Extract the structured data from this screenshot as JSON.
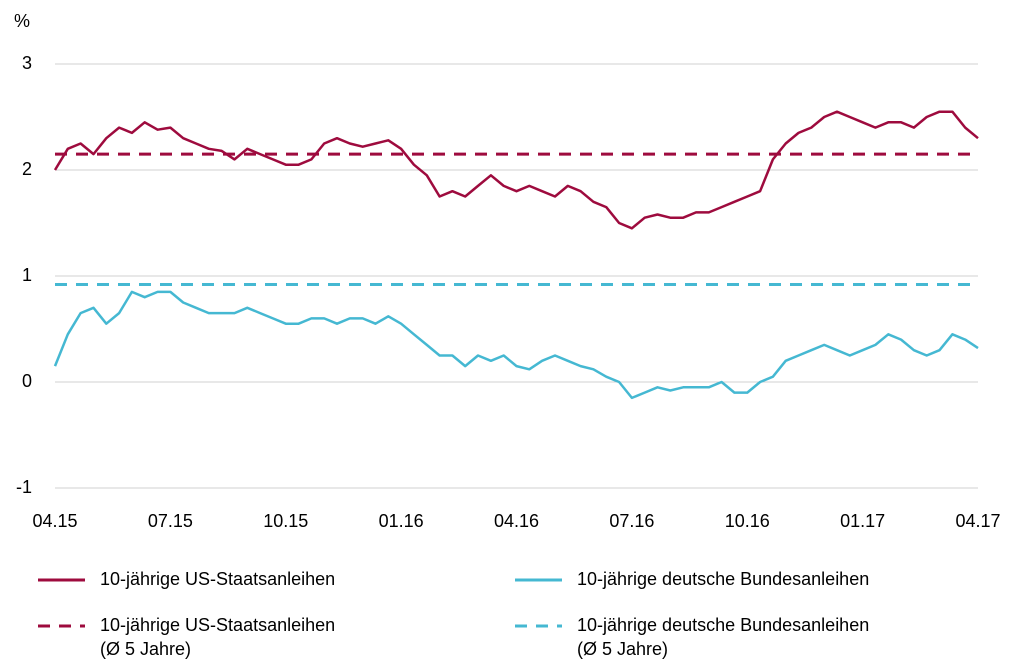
{
  "chart_data": {
    "type": "line",
    "y_label": "%",
    "categories": [
      "04.15",
      null,
      null,
      null,
      null,
      null,
      null,
      null,
      null,
      "07.15",
      null,
      null,
      null,
      null,
      null,
      null,
      null,
      null,
      "10.15",
      null,
      null,
      null,
      null,
      null,
      null,
      null,
      null,
      "01.16",
      null,
      null,
      null,
      null,
      null,
      null,
      null,
      null,
      "04.16",
      null,
      null,
      null,
      null,
      null,
      null,
      null,
      null,
      "07.16",
      null,
      null,
      null,
      null,
      null,
      null,
      null,
      null,
      "10.16",
      null,
      null,
      null,
      null,
      null,
      null,
      null,
      null,
      "01.17",
      null,
      null,
      null,
      null,
      null,
      null,
      null,
      null,
      "04.17"
    ],
    "series": [
      {
        "name": "10-jährige US-Staatsanleihen",
        "color": "#9e0b3e",
        "dash": false,
        "values": [
          2.0,
          2.2,
          2.25,
          2.15,
          2.3,
          2.4,
          2.35,
          2.45,
          2.38,
          2.4,
          2.3,
          2.25,
          2.2,
          2.18,
          2.1,
          2.2,
          2.15,
          2.1,
          2.05,
          2.05,
          2.1,
          2.25,
          2.3,
          2.25,
          2.22,
          2.25,
          2.28,
          2.2,
          2.05,
          1.95,
          1.75,
          1.8,
          1.75,
          1.85,
          1.95,
          1.85,
          1.8,
          1.85,
          1.8,
          1.75,
          1.85,
          1.8,
          1.7,
          1.65,
          1.5,
          1.45,
          1.55,
          1.58,
          1.55,
          1.55,
          1.6,
          1.6,
          1.65,
          1.7,
          1.75,
          1.8,
          2.1,
          2.25,
          2.35,
          2.4,
          2.5,
          2.55,
          2.5,
          2.45,
          2.4,
          2.45,
          2.45,
          2.4,
          2.5,
          2.55,
          2.55,
          2.4,
          2.3
        ]
      },
      {
        "name": "10-jährige deutsche Bundesanleihen",
        "color": "#45b8d2",
        "dash": false,
        "values": [
          0.15,
          0.45,
          0.65,
          0.7,
          0.55,
          0.65,
          0.85,
          0.8,
          0.85,
          0.85,
          0.75,
          0.7,
          0.65,
          0.65,
          0.65,
          0.7,
          0.65,
          0.6,
          0.55,
          0.55,
          0.6,
          0.6,
          0.55,
          0.6,
          0.6,
          0.55,
          0.62,
          0.55,
          0.45,
          0.35,
          0.25,
          0.25,
          0.15,
          0.25,
          0.2,
          0.25,
          0.15,
          0.12,
          0.2,
          0.25,
          0.2,
          0.15,
          0.12,
          0.05,
          0.0,
          -0.15,
          -0.1,
          -0.05,
          -0.08,
          -0.05,
          -0.05,
          -0.05,
          0.0,
          -0.1,
          -0.1,
          0.0,
          0.05,
          0.2,
          0.25,
          0.3,
          0.35,
          0.3,
          0.25,
          0.3,
          0.35,
          0.45,
          0.4,
          0.3,
          0.25,
          0.3,
          0.45,
          0.4,
          0.32
        ]
      },
      {
        "name": "10-jährige US-Staatsanleihen\n(Ø 5 Jahre)",
        "color": "#9e0b3e",
        "dash": true,
        "values": [
          2.15,
          2.15,
          2.15,
          2.15,
          2.15,
          2.15,
          2.15,
          2.15,
          2.15,
          2.15,
          2.15,
          2.15,
          2.15,
          2.15,
          2.15,
          2.15,
          2.15,
          2.15,
          2.15,
          2.15,
          2.15,
          2.15,
          2.15,
          2.15,
          2.15,
          2.15,
          2.15,
          2.15,
          2.15,
          2.15,
          2.15,
          2.15,
          2.15,
          2.15,
          2.15,
          2.15,
          2.15,
          2.15,
          2.15,
          2.15,
          2.15,
          2.15,
          2.15,
          2.15,
          2.15,
          2.15,
          2.15,
          2.15,
          2.15,
          2.15,
          2.15,
          2.15,
          2.15,
          2.15,
          2.15,
          2.15,
          2.15,
          2.15,
          2.15,
          2.15,
          2.15,
          2.15,
          2.15,
          2.15,
          2.15,
          2.15,
          2.15,
          2.15,
          2.15,
          2.15,
          2.15,
          2.15,
          2.15
        ]
      },
      {
        "name": "10-jährige deutsche Bundesanleihen\n(Ø 5 Jahre)",
        "color": "#45b8d2",
        "dash": true,
        "values": [
          0.92,
          0.92,
          0.92,
          0.92,
          0.92,
          0.92,
          0.92,
          0.92,
          0.92,
          0.92,
          0.92,
          0.92,
          0.92,
          0.92,
          0.92,
          0.92,
          0.92,
          0.92,
          0.92,
          0.92,
          0.92,
          0.92,
          0.92,
          0.92,
          0.92,
          0.92,
          0.92,
          0.92,
          0.92,
          0.92,
          0.92,
          0.92,
          0.92,
          0.92,
          0.92,
          0.92,
          0.92,
          0.92,
          0.92,
          0.92,
          0.92,
          0.92,
          0.92,
          0.92,
          0.92,
          0.92,
          0.92,
          0.92,
          0.92,
          0.92,
          0.92,
          0.92,
          0.92,
          0.92,
          0.92,
          0.92,
          0.92,
          0.92,
          0.92,
          0.92,
          0.92,
          0.92,
          0.92,
          0.92,
          0.92,
          0.92,
          0.92,
          0.92,
          0.92,
          0.92,
          0.92,
          0.92,
          0.92
        ]
      }
    ],
    "ylim": [
      -1,
      3
    ],
    "yticks": [
      -1,
      0,
      1,
      2,
      3
    ],
    "grid": true
  }
}
